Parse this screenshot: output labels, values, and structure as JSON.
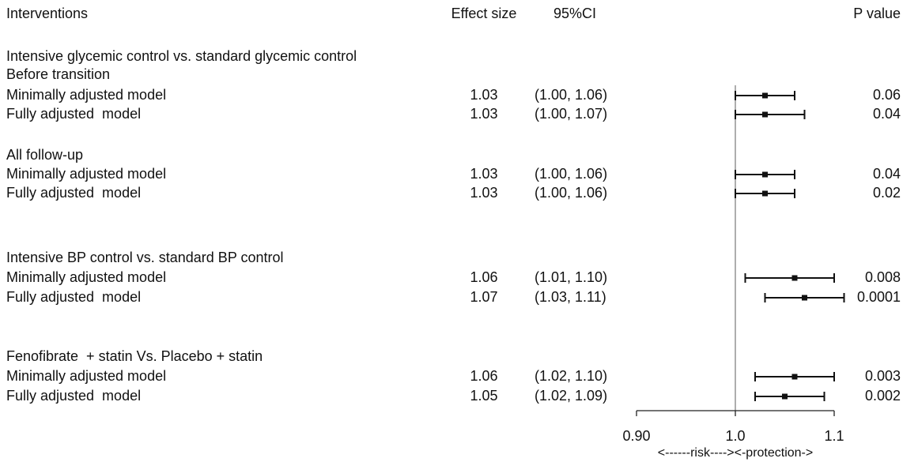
{
  "headers": {
    "interventions": "Interventions",
    "effect_size": "Effect size",
    "ci": "95%CI",
    "p_value": "P value"
  },
  "rows": [
    {
      "kind": "heading",
      "label": "Intensive glycemic control vs. standard glycemic control"
    },
    {
      "kind": "heading",
      "label": "Before transition"
    },
    {
      "kind": "data",
      "label": "Minimally adjusted model",
      "effect": "1.03",
      "ci": "(1.00, 1.06)",
      "p": "0.06"
    },
    {
      "kind": "data",
      "label": "Fully adjusted  model",
      "effect": "1.03",
      "ci": "(1.00, 1.07)",
      "p": "0.04"
    },
    {
      "kind": "heading",
      "label": "All follow-up"
    },
    {
      "kind": "data",
      "label": "Minimally adjusted model",
      "effect": "1.03",
      "ci": "(1.00, 1.06)",
      "p": "0.04"
    },
    {
      "kind": "data",
      "label": "Fully adjusted  model",
      "effect": "1.03",
      "ci": "(1.00, 1.06)",
      "p": "0.02"
    },
    {
      "kind": "heading",
      "label": "Intensive BP control vs. standard BP control"
    },
    {
      "kind": "data",
      "label": "Minimally adjusted model",
      "effect": "1.06",
      "ci": "(1.01, 1.10)",
      "p": "0.008"
    },
    {
      "kind": "data",
      "label": "Fully adjusted  model",
      "effect": "1.07",
      "ci": "(1.03, 1.11)",
      "p": "0.0001"
    },
    {
      "kind": "heading",
      "label": "Fenofibrate  + statin Vs. Placebo + statin"
    },
    {
      "kind": "data",
      "label": "Minimally adjusted model",
      "effect": "1.06",
      "ci": "(1.02, 1.10)",
      "p": "0.003"
    },
    {
      "kind": "data",
      "label": "Fully adjusted  model",
      "effect": "1.05",
      "ci": "(1.02, 1.09)",
      "p": "0.002"
    }
  ],
  "chart_data": {
    "type": "forest",
    "reference_line": 1.0,
    "xlim": [
      0.9,
      1.1
    ],
    "x_ticks": [
      "0.90",
      "1.0",
      "1.1"
    ],
    "x_tick_values": [
      0.9,
      1.0,
      1.1
    ],
    "axis_note": "<------risk----><-protection->",
    "points": [
      {
        "estimate": 1.03,
        "lower": 1.0,
        "upper": 1.06
      },
      {
        "estimate": 1.03,
        "lower": 1.0,
        "upper": 1.07
      },
      {
        "estimate": 1.03,
        "lower": 1.0,
        "upper": 1.06
      },
      {
        "estimate": 1.03,
        "lower": 1.0,
        "upper": 1.06
      },
      {
        "estimate": 1.06,
        "lower": 1.01,
        "upper": 1.1
      },
      {
        "estimate": 1.07,
        "lower": 1.03,
        "upper": 1.11
      },
      {
        "estimate": 1.06,
        "lower": 1.02,
        "upper": 1.1
      },
      {
        "estimate": 1.05,
        "lower": 1.02,
        "upper": 1.09
      }
    ]
  }
}
